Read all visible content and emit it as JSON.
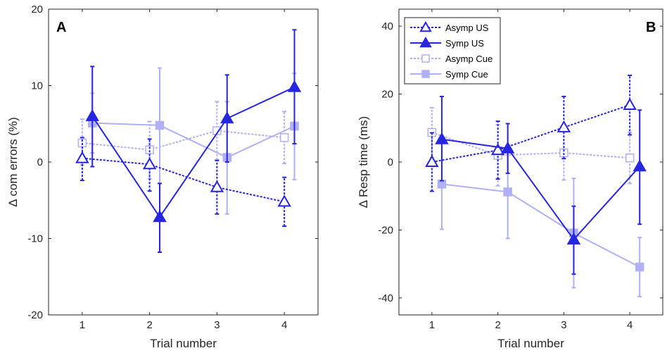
{
  "chart_data": [
    {
      "type": "line",
      "panel_label": "A",
      "xlabel": "Trial number",
      "ylabel": "Δ com errors (%)",
      "x": [
        1,
        2,
        3,
        4
      ],
      "xlim": [
        0.5,
        4.5
      ],
      "ylim": [
        -20,
        20
      ],
      "xticks": [
        "1",
        "2",
        "3",
        "4"
      ],
      "yticks": [
        "-20",
        "-10",
        "0",
        "10",
        "20"
      ],
      "grid": false,
      "series": [
        {
          "key": "asymp_us",
          "values": [
            0.5,
            -0.3,
            -3.3,
            -5.2
          ],
          "err_low": [
            -2.4,
            -3.8,
            -6.8,
            -8.4
          ],
          "err_high": [
            3.2,
            3.0,
            0.2,
            -2.0
          ]
        },
        {
          "key": "symp_us",
          "values": [
            6.0,
            -7.2,
            5.7,
            9.8
          ],
          "err_low": [
            -0.6,
            -11.8,
            0.0,
            2.4
          ],
          "err_high": [
            12.5,
            -2.8,
            11.4,
            17.3
          ]
        },
        {
          "key": "asymp_cue",
          "values": [
            2.5,
            1.6,
            4.1,
            3.2
          ],
          "err_low": [
            -0.4,
            -2.2,
            0.3,
            -0.2
          ],
          "err_high": [
            5.6,
            5.3,
            7.9,
            6.6
          ]
        },
        {
          "key": "symp_cue",
          "values": [
            5.1,
            4.8,
            0.6,
            4.7
          ],
          "err_low": [
            1.2,
            -2.8,
            -6.8,
            -2.3
          ],
          "err_high": [
            9.0,
            12.3,
            7.9,
            11.6
          ]
        }
      ]
    },
    {
      "type": "line",
      "panel_label": "B",
      "xlabel": "Trial number",
      "ylabel": "Δ Resp time (ms)",
      "x": [
        1,
        2,
        3,
        4
      ],
      "xlim": [
        0.5,
        4.5
      ],
      "ylim": [
        -45,
        45
      ],
      "xticks": [
        "1",
        "2",
        "3",
        "4"
      ],
      "yticks": [
        "-40",
        "-20",
        "0",
        "20",
        "40"
      ],
      "grid": false,
      "legend_position": "top-left",
      "series": [
        {
          "key": "asymp_us",
          "name": "Asymp US",
          "values": [
            0.0,
            3.5,
            10.2,
            16.8
          ],
          "err_low": [
            -8.6,
            -5.0,
            1.0,
            8.0
          ],
          "err_high": [
            8.6,
            12.0,
            19.3,
            25.5
          ]
        },
        {
          "key": "symp_us",
          "name": "Symp US",
          "values": [
            6.7,
            4.0,
            -22.8,
            -1.3
          ],
          "err_low": [
            -5.5,
            -3.3,
            -33.0,
            -18.3
          ],
          "err_high": [
            19.3,
            11.3,
            -13.0,
            15.3
          ]
        },
        {
          "key": "asymp_cue",
          "name": "Asymp Cue",
          "values": [
            8.7,
            2.0,
            2.7,
            1.2
          ],
          "err_low": [
            1.3,
            -7.0,
            -5.3,
            -6.3
          ],
          "err_high": [
            16.0,
            11.0,
            10.7,
            8.7
          ]
        },
        {
          "key": "symp_cue",
          "name": "Symp Cue",
          "values": [
            -6.5,
            -8.8,
            -20.9,
            -30.9
          ],
          "err_low": [
            -19.8,
            -22.5,
            -37.0,
            -39.6
          ],
          "err_high": [
            6.8,
            5.0,
            -4.8,
            -22.2
          ]
        }
      ]
    }
  ],
  "series_styles": {
    "asymp_us": {
      "color": "#2626e0",
      "dash": "3,2",
      "marker": "triangle",
      "filled": false
    },
    "symp_us": {
      "color": "#2626e0",
      "dash": "",
      "marker": "triangle",
      "filled": true
    },
    "asymp_cue": {
      "color": "#b0b0f6",
      "dash": "3,2",
      "marker": "square",
      "filled": false
    },
    "symp_cue": {
      "color": "#b0b0f6",
      "dash": "",
      "marker": "square",
      "filled": true
    }
  }
}
